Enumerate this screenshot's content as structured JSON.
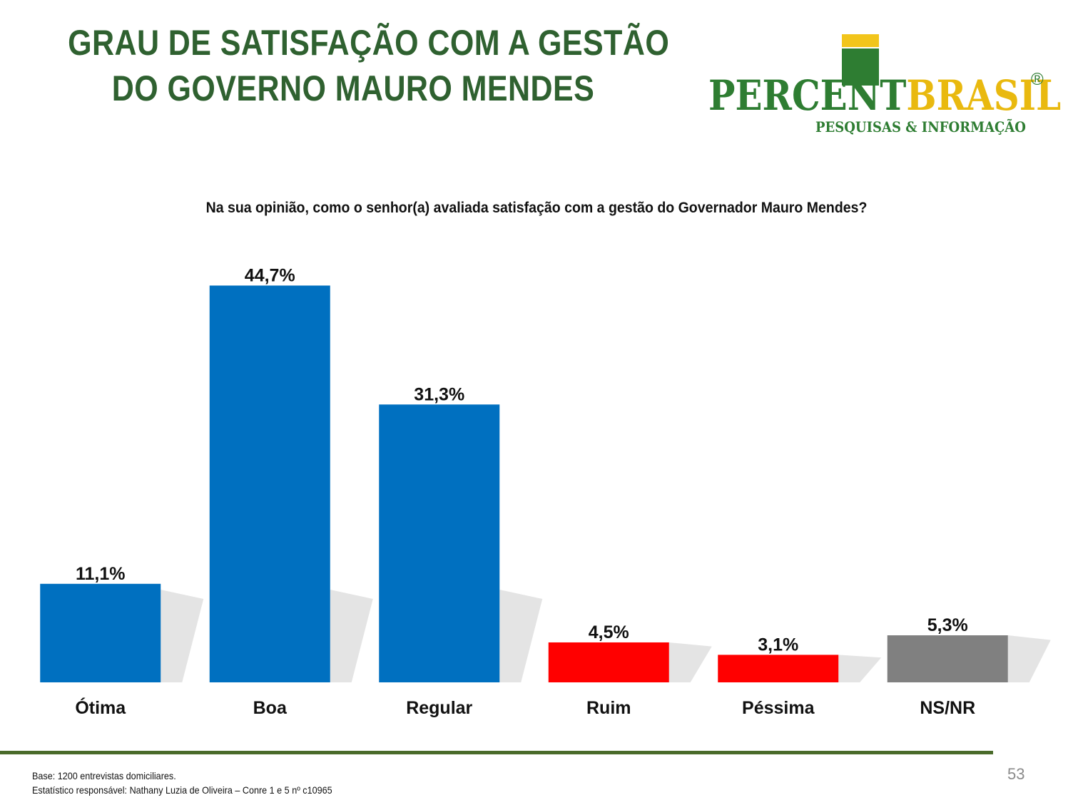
{
  "title": {
    "line1": "GRAU DE SATISFAÇÃO COM A GESTÃO",
    "line2": "DO GOVERNO MAURO MENDES"
  },
  "logo": {
    "brand_part1": "PERCENT",
    "brand_part2": "BRASIL",
    "registered": "®",
    "tagline": "PESQUISAS & INFORMAÇÃO"
  },
  "chart_data": {
    "type": "bar",
    "title": "Na sua opinião, como o senhor(a) avaliada satisfação com a gestão do Governador Mauro Mendes?",
    "categories": [
      "Ótima",
      "Boa",
      "Regular",
      "Ruim",
      "Péssima",
      "NS/NR"
    ],
    "values": [
      11.1,
      44.7,
      31.3,
      4.5,
      3.1,
      5.3
    ],
    "value_labels": [
      "11,1%",
      "44,7%",
      "31,3%",
      "4,5%",
      "3,1%",
      "5,3%"
    ],
    "colors": [
      "#0070c0",
      "#0070c0",
      "#0070c0",
      "#ff0000",
      "#ff0000",
      "#808080"
    ],
    "ylim": [
      0,
      50
    ],
    "grid": false,
    "legend": "none"
  },
  "footer": {
    "base": "Base: 1200 entrevistas domiciliares.",
    "statistician": "Estatístico responsável: Nathany Luzia de Oliveira – Conre 1 e 5 nº c10965"
  },
  "page_number": "53"
}
